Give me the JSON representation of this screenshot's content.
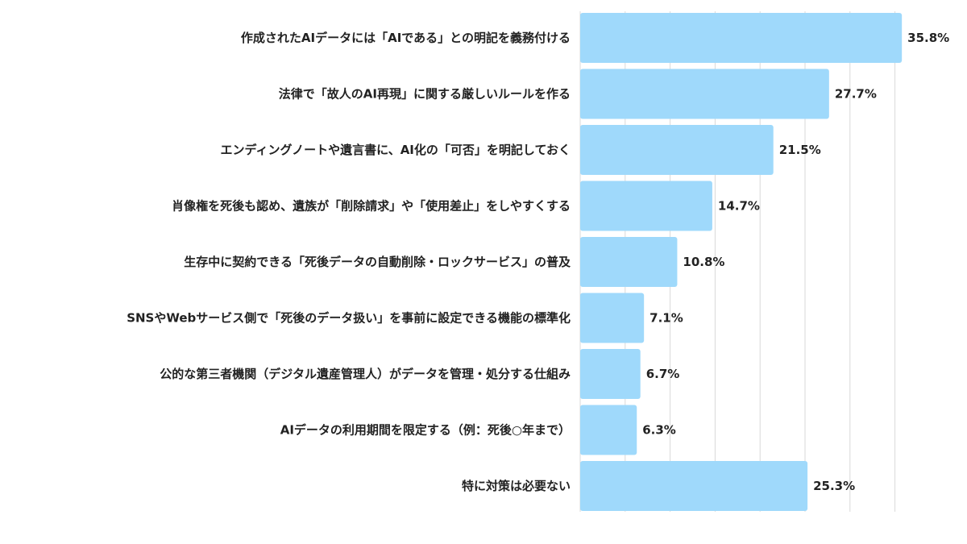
{
  "chart_data": {
    "type": "bar",
    "orientation": "horizontal",
    "title": "",
    "xlabel": "",
    "ylabel": "",
    "unit": "%",
    "xlim": [
      0,
      38
    ],
    "grid": true,
    "legend": "none",
    "bar_color": "#9fd9fb",
    "categories": [
      "作成されたAIデータには「AIである」との明記を義務付ける",
      "法律で「故人のAI再現」に関する厳しいルールを作る",
      "エンディングノートや遺言書に、AI化の「可否」を明記しておく",
      "肖像権を死後も認め、遺族が「削除請求」や「使用差止」をしやすくする",
      "生存中に契約できる「死後データの自動削除・ロックサービス」の普及",
      "SNSやWebサービス側で「死後のデータ扱い」を事前に設定できる機能の標準化",
      "公的な第三者機関（デジタル遺産管理人）がデータを管理・処分する仕組み",
      "AIデータの利用期間を限定する（例：死後○年まで）",
      "特に対策は必要ない"
    ],
    "values": [
      35.8,
      27.7,
      21.5,
      14.7,
      10.8,
      7.1,
      6.7,
      6.3,
      25.3
    ],
    "value_labels": [
      "35.8%",
      "27.7%",
      "21.5%",
      "14.7%",
      "10.8%",
      "7.1%",
      "6.7%",
      "6.3%",
      "25.3%"
    ]
  }
}
